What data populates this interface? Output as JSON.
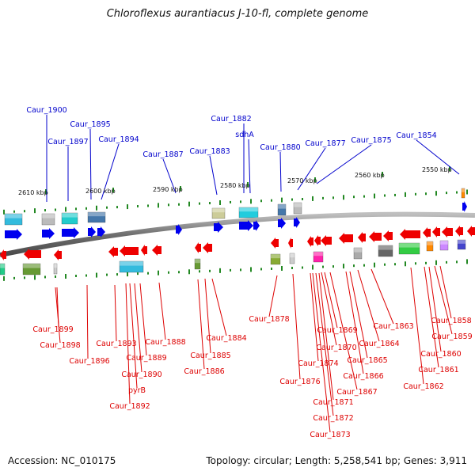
{
  "title": "Chloroflexus aurantiacus J-10-fl, complete genome",
  "accession": "Accession: NC_010175",
  "summary": "Topology: circular; Length: 5,258,541 bp; Genes: 3,911",
  "colors": {
    "forward_label": "#0000cc",
    "reverse_label": "#dd0000",
    "forward_arrow": "#0000ee",
    "reverse_arrow": "#ee0000",
    "tick": "#228822",
    "backbone": "#7a7a7a"
  },
  "scale_labels": [
    "2610 kbp",
    "2600 kbp",
    "2590 kbp",
    "2580 kbp",
    "2570 kbp",
    "2560 kbp",
    "2550 kbp"
  ],
  "forward_genes": [
    "Caur_1900",
    "Caur_1897",
    "Caur_1895",
    "Caur_1894",
    "Caur_1887",
    "Caur_1883",
    "Caur_1882",
    "sdhA",
    "Caur_1880",
    "Caur_1877",
    "Caur_1875",
    "Caur_1854"
  ],
  "reverse_genes": [
    "Caur_1899",
    "Caur_1898",
    "Caur_1896",
    "Caur_1893",
    "Caur_1892",
    "pyrB",
    "Caur_1890",
    "Caur_1889",
    "Caur_1888",
    "Caur_1886",
    "Caur_1885",
    "Caur_1884",
    "Caur_1878",
    "Caur_1876",
    "Caur_1874",
    "Caur_1873",
    "Caur_1872",
    "Caur_1871",
    "Caur_1870",
    "Caur_1869",
    "Caur_1867",
    "Caur_1866",
    "Caur_1865",
    "Caur_1864",
    "Caur_1863",
    "Caur_1862",
    "Caur_1861",
    "Caur_1860",
    "Caur_1859",
    "Caur_1858"
  ]
}
